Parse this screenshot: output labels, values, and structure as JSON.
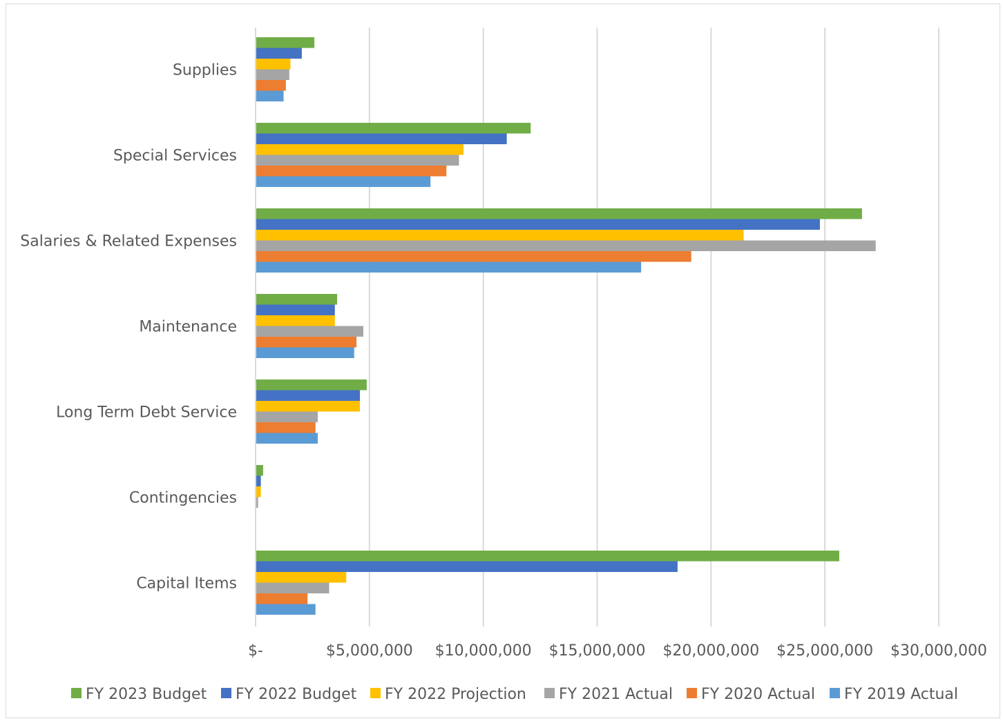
{
  "chart_data": {
    "type": "bar",
    "orientation": "horizontal",
    "title": "",
    "xlabel": "",
    "ylabel": "",
    "categories": [
      "Supplies",
      "Special Services",
      "Salaries & Related Expenses",
      "Maintenance",
      "Long Term Debt Service",
      "Contingencies",
      "Capital Items"
    ],
    "x_ticks": [
      "$-",
      "$5,000,000",
      "$10,000,000",
      "$15,000,000",
      "$20,000,000",
      "$25,000,000",
      "$30,000,000"
    ],
    "xlim": [
      0,
      30000000
    ],
    "grid": "vertical",
    "legend_position": "bottom",
    "series": [
      {
        "name": "FY 2023 Budget",
        "color": "#70ad47",
        "values": [
          2550000,
          12050000,
          26600000,
          3550000,
          4850000,
          300000,
          25600000
        ]
      },
      {
        "name": "FY 2022 Budget",
        "color": "#4472c4",
        "values": [
          2000000,
          11000000,
          24750000,
          3450000,
          4550000,
          200000,
          18500000
        ]
      },
      {
        "name": "FY 2022 Projection",
        "color": "#ffc000",
        "values": [
          1500000,
          9100000,
          21400000,
          3450000,
          4550000,
          200000,
          3950000
        ]
      },
      {
        "name": "FY 2021 Actual",
        "color": "#a5a5a5",
        "values": [
          1450000,
          8900000,
          27200000,
          4700000,
          2700000,
          80000,
          3200000
        ]
      },
      {
        "name": "FY 2020 Actual",
        "color": "#ed7d31",
        "values": [
          1300000,
          8350000,
          19100000,
          4400000,
          2600000,
          0,
          2250000
        ]
      },
      {
        "name": "FY 2019 Actual",
        "color": "#5b9bd5",
        "values": [
          1200000,
          7650000,
          16900000,
          4300000,
          2700000,
          0,
          2600000
        ]
      }
    ]
  }
}
